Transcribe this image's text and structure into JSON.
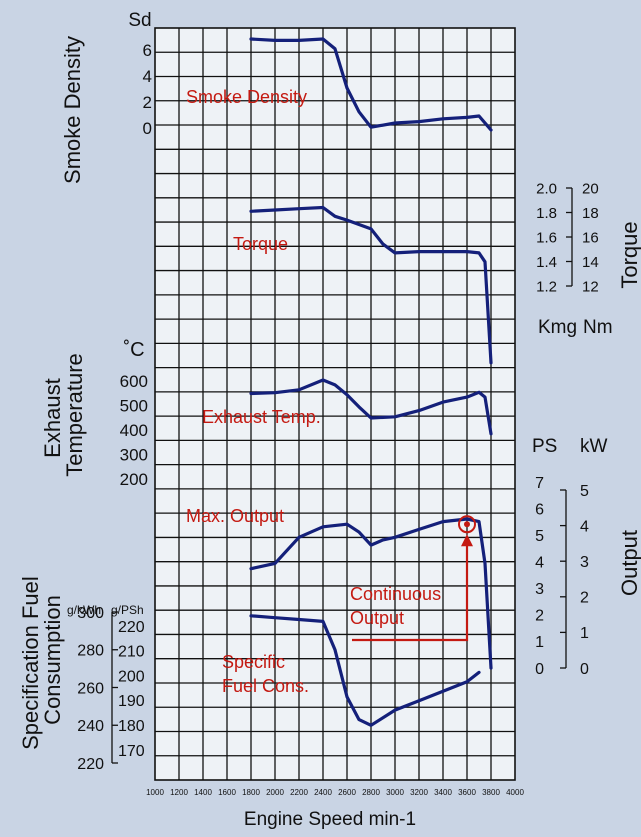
{
  "chart_data": {
    "type": "line",
    "xlabel": "Engine Speed min-1",
    "x_ticks": [
      1000,
      1200,
      1400,
      1600,
      1800,
      2000,
      2200,
      2400,
      2600,
      2800,
      3000,
      3200,
      3400,
      3600,
      3800,
      4000
    ],
    "xlim": [
      1000,
      4000
    ],
    "grid": true,
    "curve_color": "#14207a",
    "label_color": "#c41a12",
    "panels": {
      "smoke": {
        "title": "Smoke Density",
        "unit": "Sd",
        "ticks": [
          "6",
          "4",
          "2",
          "0"
        ],
        "ylim": [
          0,
          6
        ]
      },
      "torque": {
        "title": "Torque",
        "units": [
          "Kmg",
          "Nm"
        ],
        "ticks_left": [
          "2.0",
          "1.8",
          "1.6",
          "1.4",
          "1.2"
        ],
        "ticks_right": [
          "20",
          "18",
          "16",
          "14",
          "12"
        ],
        "ylim": [
          12,
          20
        ]
      },
      "exhaust": {
        "title": "Exhaust Temperature",
        "unit": "˚C",
        "ticks": [
          "600",
          "500",
          "400",
          "300",
          "200"
        ],
        "ylim": [
          200,
          600
        ]
      },
      "output": {
        "title": "Output",
        "units": [
          "PS",
          "kW"
        ],
        "ticks_left": [
          "7",
          "6",
          "5",
          "4",
          "3",
          "2",
          "1",
          "0"
        ],
        "ticks_right": [
          "5",
          "4",
          "3",
          "2",
          "1",
          "0"
        ],
        "ylim": [
          0,
          7
        ]
      },
      "fuel": {
        "title": "Specification Fuel Consumption",
        "units": [
          "g/kWh",
          "g/PSh"
        ],
        "ticks_left": [
          "300",
          "280",
          "260",
          "240",
          "220"
        ],
        "ticks_right": [
          "220",
          "210",
          "200",
          "190",
          "180",
          "170"
        ],
        "ylim": [
          220,
          300
        ]
      }
    },
    "series": [
      {
        "name": "Smoke Density",
        "panel": "smoke",
        "x": [
          1800,
          2000,
          2200,
          2400,
          2500,
          2600,
          2700,
          2800,
          3000,
          3200,
          3400,
          3600,
          3700,
          3800
        ],
        "y": [
          6.5,
          6.4,
          6.4,
          6.5,
          5.8,
          3.0,
          1.3,
          0.2,
          0.5,
          0.6,
          0.8,
          0.9,
          1.0,
          0
        ]
      },
      {
        "name": "Torque",
        "panel": "torque",
        "x": [
          1800,
          2000,
          2200,
          2400,
          2500,
          2600,
          2800,
          2900,
          3000,
          3200,
          3400,
          3600,
          3700,
          3750,
          3800
        ],
        "y": [
          18.0,
          18.1,
          18.2,
          18.3,
          17.6,
          17.3,
          16.6,
          15.4,
          14.7,
          14.8,
          14.8,
          14.8,
          14.7,
          14.0,
          6.0
        ]
      },
      {
        "name": "Exhaust Temp.",
        "panel": "exhaust",
        "x": [
          1800,
          2000,
          2200,
          2400,
          2500,
          2600,
          2700,
          2800,
          3000,
          3200,
          3400,
          3600,
          3700,
          3750,
          3800
        ],
        "y": [
          545,
          548,
          560,
          600,
          580,
          540,
          490,
          445,
          450,
          475,
          510,
          530,
          550,
          530,
          380
        ]
      },
      {
        "name": "Max. Output",
        "panel": "output",
        "x": [
          1800,
          2000,
          2200,
          2400,
          2600,
          2700,
          2800,
          2900,
          3000,
          3200,
          3400,
          3600,
          3700,
          3750,
          3800
        ],
        "y": [
          3.8,
          4.0,
          5.0,
          5.4,
          5.5,
          5.2,
          4.7,
          4.9,
          5.0,
          5.3,
          5.6,
          5.7,
          5.6,
          4.0,
          0
        ]
      },
      {
        "name": "Specific Fuel Cons.",
        "panel": "fuel",
        "x": [
          1800,
          2000,
          2200,
          2400,
          2500,
          2600,
          2700,
          2800,
          3000,
          3200,
          3400,
          3600,
          3700
        ],
        "y": [
          298,
          297,
          296,
          295,
          280,
          255,
          243,
          240,
          248,
          253,
          258,
          263,
          268
        ]
      }
    ],
    "annotations": [
      {
        "text": "Continuous Output",
        "lines": [
          "Continuous",
          "Output"
        ],
        "x": 3600,
        "y": 5.5,
        "panel": "output"
      },
      {
        "text": "Specific Fuel Cons.",
        "lines": [
          "Specific",
          "Fuel Cons."
        ]
      }
    ]
  }
}
